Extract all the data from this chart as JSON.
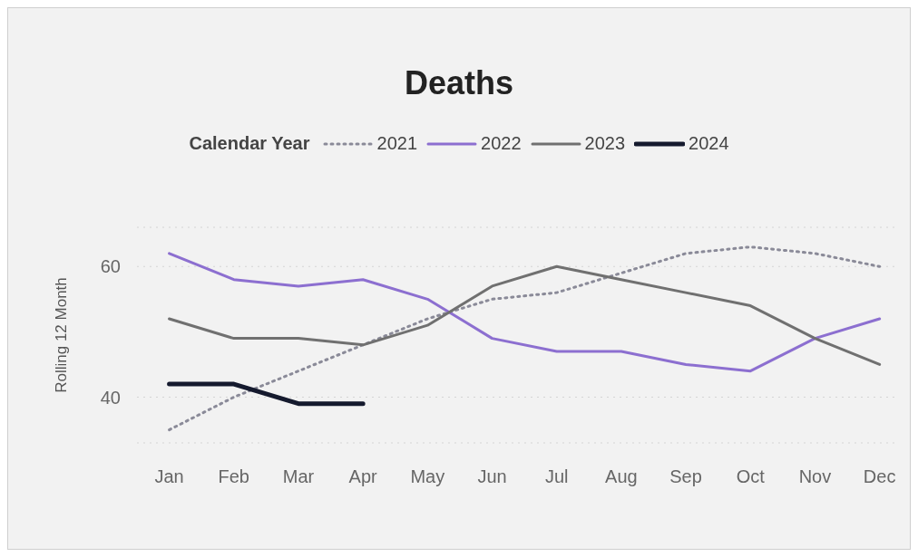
{
  "chart_data": {
    "type": "line",
    "title": "Deaths",
    "ylabel": "Rolling 12 Month",
    "legend_title": "Calendar Year",
    "legend": "top",
    "grid": "y",
    "categories": [
      "Jan",
      "Feb",
      "Mar",
      "Apr",
      "May",
      "Jun",
      "Jul",
      "Aug",
      "Sep",
      "Oct",
      "Nov",
      "Dec"
    ],
    "ylim": [
      33,
      66
    ],
    "yticks": [
      40,
      60
    ],
    "series": [
      {
        "name": "2021",
        "color": "#8a8a98",
        "line_style": "dotted",
        "values": [
          35,
          40,
          44,
          48,
          52,
          55,
          56,
          59,
          62,
          63,
          62,
          60
        ]
      },
      {
        "name": "2022",
        "color": "#8c6fd0",
        "line_style": "solid",
        "values": [
          62,
          58,
          57,
          58,
          55,
          49,
          47,
          47,
          45,
          44,
          49,
          52
        ]
      },
      {
        "name": "2023",
        "color": "#707070",
        "line_style": "solid",
        "values": [
          52,
          49,
          49,
          48,
          51,
          57,
          60,
          58,
          56,
          54,
          49,
          45
        ]
      },
      {
        "name": "2024",
        "color": "#151a2e",
        "line_style": "solid",
        "values": [
          42,
          42,
          39,
          39,
          null,
          null,
          null,
          null,
          null,
          null,
          null,
          null
        ]
      }
    ]
  }
}
